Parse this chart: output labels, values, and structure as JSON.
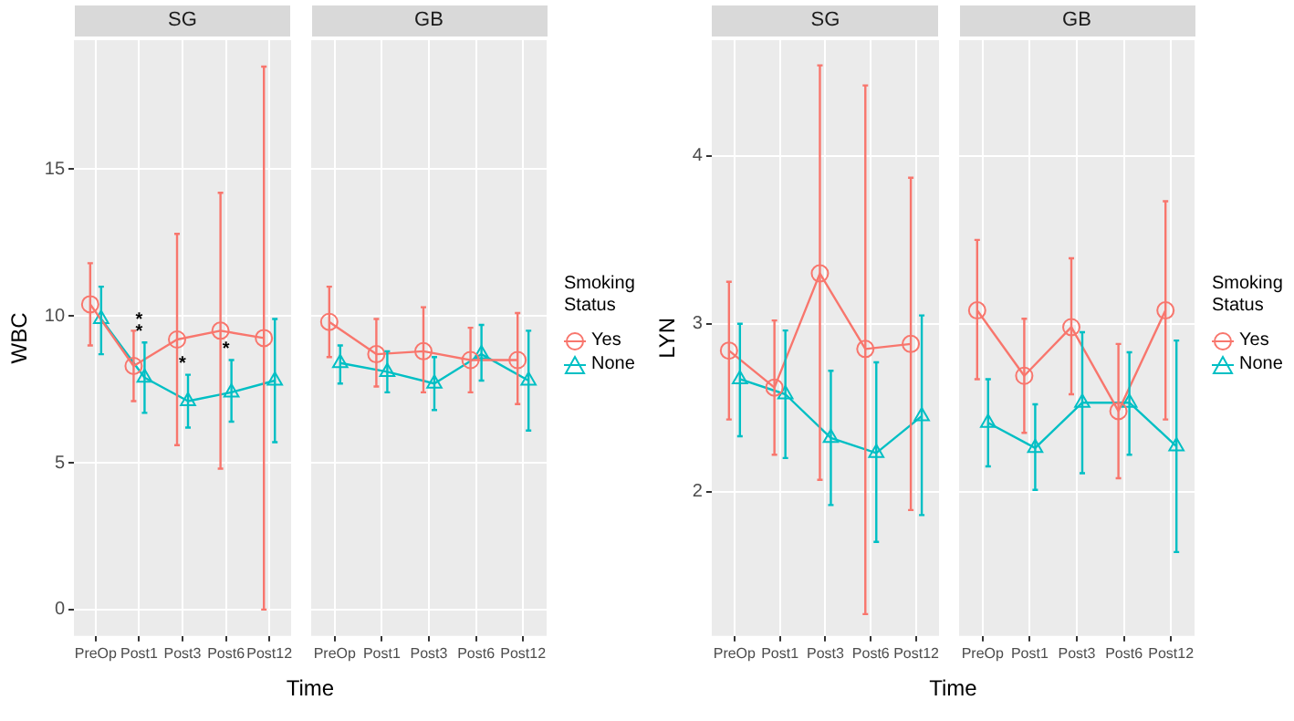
{
  "chart_data": [
    {
      "type": "line",
      "title": "SG",
      "ylabel": "WBC",
      "xlabel": "Time",
      "categories": [
        "PreOp",
        "Post1",
        "Post3",
        "Post6",
        "Post12"
      ],
      "ylim": [
        -0.9,
        19.4
      ],
      "yticks": [
        0,
        5,
        10,
        15
      ],
      "grid": true,
      "legend": false,
      "series": [
        {
          "color": "#f8766d",
          "marker": "circle",
          "values": [
            10.4,
            8.3,
            9.2,
            9.5,
            9.25
          ],
          "errors": [
            [
              9.0,
              11.8
            ],
            [
              7.1,
              9.5
            ],
            [
              5.6,
              12.8
            ],
            [
              4.8,
              14.2
            ],
            [
              0,
              18.5
            ]
          ]
        },
        {
          "color": "#00bfc4",
          "marker": "triangle",
          "values": [
            9.9,
            7.9,
            7.1,
            7.4,
            7.8
          ],
          "errors": [
            [
              8.7,
              11.0
            ],
            [
              6.7,
              9.1
            ],
            [
              6.2,
              8.0
            ],
            [
              6.4,
              8.5
            ],
            [
              5.7,
              9.9
            ]
          ]
        }
      ],
      "annotations": [
        {
          "text": "*",
          "x": "Post1",
          "y": 9.5
        },
        {
          "text": "*",
          "x": "Post1",
          "y": 9.1
        },
        {
          "text": "*",
          "x": "Post3",
          "y": 8.0
        },
        {
          "text": "*",
          "x": "Post6",
          "y": 8.5
        }
      ]
    },
    {
      "type": "line",
      "title": "GB",
      "categories": [
        "PreOp",
        "Post1",
        "Post3",
        "Post6",
        "Post12"
      ],
      "ylim": [
        -0.9,
        19.4
      ],
      "yticks": [
        0,
        5,
        10,
        15
      ],
      "tick_labels": "x",
      "grid": true,
      "legend": "right",
      "legend_title": "Smoking Status",
      "series": [
        {
          "name": "Yes",
          "color": "#f8766d",
          "marker": "circle",
          "values": [
            9.8,
            8.7,
            8.8,
            8.5,
            8.5
          ],
          "errors": [
            [
              8.6,
              11.0
            ],
            [
              7.6,
              9.9
            ],
            [
              7.4,
              10.3
            ],
            [
              7.4,
              9.6
            ],
            [
              7.0,
              10.1
            ]
          ]
        },
        {
          "name": "None",
          "color": "#00bfc4",
          "marker": "triangle",
          "values": [
            8.4,
            8.1,
            7.7,
            8.7,
            7.8
          ],
          "errors": [
            [
              7.7,
              9.0
            ],
            [
              7.4,
              8.8
            ],
            [
              6.8,
              8.6
            ],
            [
              7.8,
              9.7
            ],
            [
              6.1,
              9.5
            ]
          ]
        }
      ]
    },
    {
      "type": "line",
      "title": "SG",
      "ylabel": "LYN",
      "xlabel": "Time",
      "categories": [
        "PreOp",
        "Post1",
        "Post3",
        "Post6",
        "Post12"
      ],
      "ylim": [
        1.14,
        4.69
      ],
      "yticks": [
        2,
        3,
        4
      ],
      "grid": true,
      "legend": false,
      "series": [
        {
          "color": "#f8766d",
          "marker": "circle",
          "values": [
            2.84,
            2.62,
            3.3,
            2.85,
            2.88
          ],
          "errors": [
            [
              2.43,
              3.25
            ],
            [
              2.22,
              3.02
            ],
            [
              2.07,
              4.54
            ],
            [
              1.27,
              4.42
            ],
            [
              1.89,
              3.87
            ]
          ]
        },
        {
          "color": "#00bfc4",
          "marker": "triangle",
          "values": [
            2.67,
            2.58,
            2.32,
            2.23,
            2.45
          ],
          "errors": [
            [
              2.33,
              3.0
            ],
            [
              2.2,
              2.96
            ],
            [
              1.92,
              2.72
            ],
            [
              1.7,
              2.77
            ],
            [
              1.86,
              3.05
            ]
          ]
        }
      ]
    },
    {
      "type": "line",
      "title": "GB",
      "categories": [
        "PreOp",
        "Post1",
        "Post3",
        "Post6",
        "Post12"
      ],
      "ylim": [
        1.14,
        4.69
      ],
      "yticks": [
        2,
        3,
        4
      ],
      "tick_labels": "x",
      "grid": true,
      "legend": "right",
      "legend_title": "Smoking Status",
      "series": [
        {
          "name": "Yes",
          "color": "#f8766d",
          "marker": "circle",
          "values": [
            3.08,
            2.69,
            2.98,
            2.48,
            3.08
          ],
          "errors": [
            [
              2.67,
              3.5
            ],
            [
              2.35,
              3.03
            ],
            [
              2.58,
              3.39
            ],
            [
              2.08,
              2.88
            ],
            [
              2.43,
              3.73
            ]
          ]
        },
        {
          "name": "None",
          "color": "#00bfc4",
          "marker": "triangle",
          "values": [
            2.41,
            2.26,
            2.53,
            2.53,
            2.27
          ],
          "errors": [
            [
              2.15,
              2.67
            ],
            [
              2.01,
              2.52
            ],
            [
              2.11,
              2.95
            ],
            [
              2.22,
              2.83
            ],
            [
              1.64,
              2.9
            ]
          ]
        }
      ]
    }
  ]
}
